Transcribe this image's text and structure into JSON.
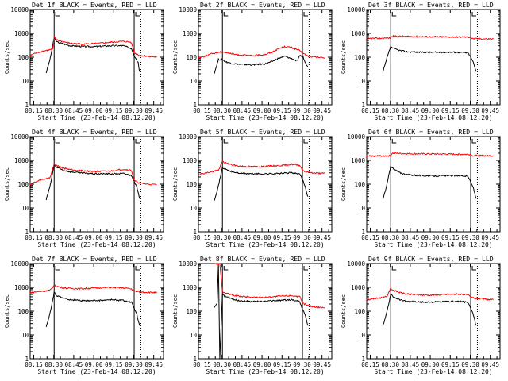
{
  "figure": {
    "xlabel": "Start Time (23-Feb-14 08:12:20)",
    "ylabel": "Counts/sec",
    "x_ticks": [
      "08:15",
      "08:30",
      "08:45",
      "09:00",
      "09:15",
      "09:30",
      "09:45"
    ],
    "y_ticks": [
      "1",
      "10",
      "100",
      "1000",
      "10000"
    ]
  },
  "colors": {
    "events": "#000000",
    "lld": "#ff0000",
    "axes": "#000000",
    "background": "#ffffff"
  },
  "chart_data": [
    {
      "type": "line",
      "title": "Det 1f BLACK = Events, RED = LLD",
      "x_unit": "minutes since 08:12:20",
      "ylim": [
        1,
        10000
      ],
      "yscale": "log",
      "grid": false,
      "vertical_markers": [
        18,
        78,
        83
      ],
      "series": [
        {
          "name": "Events",
          "x": [
            0,
            2.5,
            3,
            12,
            15,
            18,
            20,
            30,
            40,
            50,
            60,
            70,
            76,
            78,
            80,
            81,
            82
          ],
          "y": [
            null,
            null,
            null,
            22,
            85,
            650,
            430,
            300,
            280,
            280,
            300,
            300,
            230,
            120,
            75,
            60,
            25
          ]
        },
        {
          "name": "LLD",
          "x": [
            0,
            2,
            6,
            10,
            14,
            17,
            18,
            20,
            30,
            40,
            50,
            60,
            70,
            76,
            78,
            82,
            88,
            95
          ],
          "y": [
            110,
            135,
            160,
            180,
            200,
            220,
            700,
            520,
            380,
            350,
            370,
            420,
            460,
            420,
            150,
            120,
            110,
            100
          ]
        }
      ]
    },
    {
      "type": "line",
      "title": "Det 2f BLACK = Events, RED = LLD",
      "x_unit": "minutes since 08:12:20",
      "ylim": [
        1,
        10000
      ],
      "yscale": "log",
      "grid": false,
      "vertical_markers": [
        18,
        78,
        83
      ],
      "series": [
        {
          "name": "Events",
          "x": [
            12,
            15,
            18,
            20,
            25,
            30,
            40,
            50,
            55,
            60,
            65,
            70,
            74,
            76,
            78,
            80,
            82
          ],
          "y": [
            22,
            80,
            80,
            65,
            55,
            50,
            48,
            52,
            65,
            90,
            110,
            85,
            70,
            110,
            120,
            60,
            40
          ]
        },
        {
          "name": "LLD",
          "x": [
            0,
            5,
            10,
            15,
            18,
            20,
            25,
            30,
            40,
            50,
            55,
            60,
            65,
            70,
            75,
            78,
            82,
            88,
            95
          ],
          "y": [
            95,
            110,
            140,
            160,
            170,
            160,
            140,
            125,
            115,
            130,
            160,
            230,
            280,
            250,
            200,
            150,
            110,
            100,
            95
          ]
        }
      ]
    },
    {
      "type": "line",
      "title": "Det 3f BLACK = Events, RED = LLD",
      "x_unit": "minutes since 08:12:20",
      "ylim": [
        1,
        10000
      ],
      "yscale": "log",
      "grid": false,
      "vertical_markers": [
        18,
        78,
        83
      ],
      "series": [
        {
          "name": "Events",
          "x": [
            12,
            15,
            18,
            20,
            25,
            30,
            40,
            50,
            60,
            70,
            76,
            78,
            80,
            82
          ],
          "y": [
            22,
            85,
            280,
            230,
            190,
            170,
            160,
            160,
            162,
            160,
            150,
            100,
            60,
            25
          ]
        },
        {
          "name": "LLD",
          "x": [
            0,
            18,
            19,
            30,
            50,
            70,
            78,
            79,
            95
          ],
          "y": [
            600,
            640,
            760,
            740,
            720,
            700,
            690,
            600,
            580
          ]
        }
      ]
    },
    {
      "type": "line",
      "title": "Det 4f BLACK = Events, RED = LLD",
      "x_unit": "minutes since 08:12:20",
      "ylim": [
        1,
        10000
      ],
      "yscale": "log",
      "grid": false,
      "vertical_markers": [
        18,
        78,
        83
      ],
      "series": [
        {
          "name": "Events",
          "x": [
            12,
            15,
            18,
            20,
            25,
            30,
            40,
            50,
            60,
            70,
            76,
            78,
            80,
            82
          ],
          "y": [
            22,
            85,
            650,
            500,
            380,
            330,
            290,
            270,
            270,
            280,
            230,
            130,
            75,
            25
          ]
        },
        {
          "name": "LLD",
          "x": [
            0,
            5,
            10,
            15,
            18,
            20,
            25,
            30,
            40,
            50,
            60,
            70,
            76,
            78,
            82,
            88,
            95
          ],
          "y": [
            100,
            130,
            160,
            190,
            700,
            600,
            470,
            420,
            360,
            340,
            350,
            420,
            380,
            140,
            110,
            100,
            95
          ]
        }
      ]
    },
    {
      "type": "line",
      "title": "Det 5f BLACK = Events, RED = LLD",
      "x_unit": "minutes since 08:12:20",
      "ylim": [
        1,
        10000
      ],
      "yscale": "log",
      "grid": false,
      "vertical_markers": [
        18,
        78,
        83
      ],
      "series": [
        {
          "name": "Events",
          "x": [
            12,
            15,
            18,
            20,
            25,
            30,
            40,
            50,
            60,
            70,
            76,
            78,
            80,
            82
          ],
          "y": [
            22,
            85,
            500,
            420,
            330,
            290,
            270,
            270,
            280,
            300,
            260,
            160,
            80,
            30
          ]
        },
        {
          "name": "LLD",
          "x": [
            0,
            5,
            10,
            15,
            18,
            20,
            25,
            30,
            40,
            50,
            60,
            70,
            76,
            78,
            82,
            88,
            95
          ],
          "y": [
            260,
            290,
            330,
            380,
            900,
            800,
            650,
            580,
            540,
            560,
            600,
            680,
            620,
            380,
            320,
            290,
            280
          ]
        }
      ]
    },
    {
      "type": "line",
      "title": "Det 6f BLACK = Events, RED = LLD",
      "x_unit": "minutes since 08:12:20",
      "ylim": [
        1,
        10000
      ],
      "yscale": "log",
      "grid": false,
      "vertical_markers": [
        18,
        78,
        83
      ],
      "series": [
        {
          "name": "Events",
          "x": [
            12,
            15,
            18,
            20,
            25,
            30,
            40,
            50,
            60,
            70,
            76,
            78,
            80,
            82
          ],
          "y": [
            22,
            85,
            600,
            430,
            300,
            250,
            230,
            220,
            225,
            230,
            210,
            120,
            70,
            25
          ]
        },
        {
          "name": "LLD",
          "x": [
            0,
            18,
            19,
            30,
            50,
            70,
            78,
            79,
            95
          ],
          "y": [
            1500,
            1550,
            2000,
            1900,
            1850,
            1800,
            1780,
            1600,
            1550
          ]
        }
      ]
    },
    {
      "type": "line",
      "title": "Det 7f BLACK = Events, RED = LLD",
      "x_unit": "minutes since 08:12:20",
      "ylim": [
        1,
        10000
      ],
      "yscale": "log",
      "grid": false,
      "vertical_markers": [
        18,
        78,
        83
      ],
      "series": [
        {
          "name": "Events",
          "x": [
            12,
            15,
            18,
            20,
            25,
            30,
            40,
            50,
            60,
            70,
            76,
            78,
            80,
            82
          ],
          "y": [
            22,
            85,
            600,
            450,
            350,
            300,
            270,
            280,
            300,
            280,
            230,
            130,
            75,
            25
          ]
        },
        {
          "name": "LLD",
          "x": [
            0,
            5,
            10,
            15,
            18,
            20,
            25,
            30,
            40,
            50,
            60,
            70,
            76,
            78,
            82,
            88,
            95
          ],
          "y": [
            600,
            650,
            700,
            750,
            1200,
            1100,
            950,
            900,
            880,
            950,
            1000,
            950,
            850,
            700,
            650,
            620,
            600
          ]
        }
      ]
    },
    {
      "type": "line",
      "title": "Det 8f BLACK = Events, RED = LLD",
      "x_unit": "minutes since 08:12:20",
      "ylim": [
        1,
        10000
      ],
      "yscale": "log",
      "grid": false,
      "vertical_markers": [
        18,
        78,
        83
      ],
      "series": [
        {
          "name": "Events",
          "x": [
            12,
            14,
            15,
            16,
            18,
            20,
            25,
            30,
            40,
            50,
            60,
            70,
            76,
            78,
            80,
            82
          ],
          "y": [
            150,
            200,
            10000,
            1,
            500,
            420,
            330,
            280,
            250,
            260,
            280,
            300,
            250,
            120,
            70,
            25
          ]
        },
        {
          "name": "LLD",
          "x": [
            12,
            14,
            15,
            16,
            18,
            20,
            25,
            30,
            40,
            50,
            60,
            70,
            76,
            78,
            82,
            88,
            95
          ],
          "y": [
            10000,
            10000,
            10000,
            10000,
            650,
            580,
            480,
            420,
            380,
            380,
            420,
            450,
            400,
            220,
            170,
            150,
            140
          ]
        }
      ]
    },
    {
      "type": "line",
      "title": "Det 9f BLACK = Events, RED = LLD",
      "x_unit": "minutes since 08:12:20",
      "ylim": [
        1,
        10000
      ],
      "yscale": "log",
      "grid": false,
      "vertical_markers": [
        18,
        78,
        83
      ],
      "series": [
        {
          "name": "Events",
          "x": [
            12,
            15,
            18,
            20,
            25,
            30,
            40,
            50,
            60,
            70,
            76,
            78,
            80,
            82
          ],
          "y": [
            22,
            85,
            500,
            400,
            300,
            260,
            240,
            240,
            250,
            260,
            230,
            130,
            70,
            25
          ]
        },
        {
          "name": "LLD",
          "x": [
            0,
            5,
            10,
            15,
            18,
            20,
            25,
            30,
            40,
            50,
            60,
            70,
            76,
            78,
            82,
            88,
            95
          ],
          "y": [
            300,
            330,
            360,
            400,
            900,
            750,
            600,
            520,
            480,
            470,
            500,
            520,
            480,
            380,
            340,
            320,
            300
          ]
        }
      ]
    }
  ]
}
